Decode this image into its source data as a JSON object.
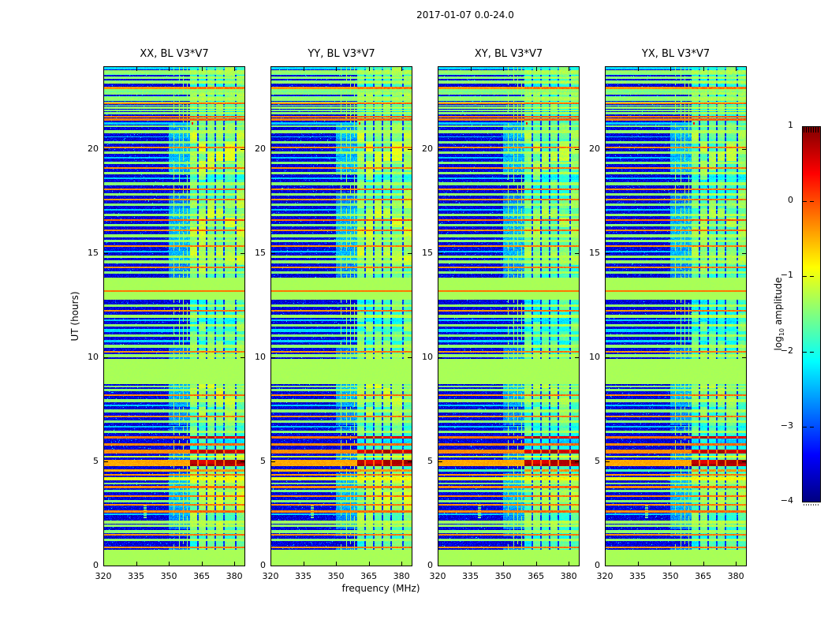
{
  "chart_data": {
    "type": "heatmap",
    "title": "2017-01-07 0.0-24.0",
    "xlabel": "frequency (MHz)",
    "ylabel": "UT (hours)",
    "panels": [
      {
        "title": "XX, BL V3*V7",
        "pol": "parallel"
      },
      {
        "title": "YY, BL V3*V7",
        "pol": "parallel"
      },
      {
        "title": "XY, BL V3*V7",
        "pol": "cross"
      },
      {
        "title": "YX, BL V3*V7",
        "pol": "cross"
      }
    ],
    "x_range_mhz": [
      320,
      385
    ],
    "x_ticks": [
      320,
      335,
      350,
      365,
      380
    ],
    "y_range_hours": [
      0,
      24
    ],
    "y_ticks": [
      0,
      5,
      10,
      15,
      20
    ],
    "colorbar": {
      "label_pre": "log",
      "label_sub": "10",
      "label_post": " amplitude",
      "ticks": [
        1,
        0,
        -1,
        -2,
        -3,
        -4
      ],
      "vmin": -4,
      "vmax": 1,
      "colormap": "jet"
    },
    "features": {
      "noise_floor": -3.75,
      "solid_green_bands": [
        [
          0.0,
          0.78
        ],
        [
          8.75,
          9.95
        ],
        [
          12.8,
          13.85
        ]
      ],
      "solid_band_value": -1.3,
      "broadband_rfi": {
        "f0": 359.7,
        "f1": 385,
        "gaps_mhz": [
          363.3,
          367.3,
          371.3,
          375.2,
          380.6
        ]
      },
      "narrow_vlines_mhz": [
        352.4,
        354.8,
        356.8,
        358.6
      ],
      "orange_vline": {
        "f": 356.8,
        "ut0": 2.5,
        "ut1": 3.1
      },
      "blob": {
        "f": 339,
        "ut0": 2.3,
        "ut1": 3.0
      },
      "cyan_partial_line": {
        "ut": 21.25,
        "fmax": 362,
        "dot_f": 360.8
      },
      "dense_top_ut": 21.85,
      "stripes": [
        [
          0.9,
          0.06,
          -0.35
        ],
        [
          1.25,
          0.1,
          -1.45
        ],
        [
          1.5,
          0.06,
          -0.35
        ],
        [
          1.65,
          0.12,
          -1.45
        ],
        [
          1.95,
          0.1,
          -1.4
        ],
        [
          2.12,
          0.14,
          -1.35
        ],
        [
          2.48,
          0.05,
          -2.4
        ],
        [
          2.62,
          0.06,
          -0.3
        ],
        [
          2.95,
          0.05,
          -0.35
        ],
        [
          3.1,
          0.1,
          -1.45
        ],
        [
          3.35,
          0.06,
          -0.3
        ],
        [
          3.6,
          0.1,
          -1.5
        ],
        [
          3.78,
          0.1,
          -0.3
        ],
        [
          3.95,
          0.06,
          -1.45
        ],
        [
          4.18,
          0.12,
          -1.0
        ],
        [
          4.38,
          0.06,
          -0.35
        ],
        [
          4.6,
          0.08,
          -0.5,
          2
        ],
        [
          4.95,
          0.26,
          -0.45,
          1
        ],
        [
          5.25,
          0.06,
          -1.1
        ],
        [
          5.5,
          0.2,
          -0.3,
          1
        ],
        [
          5.85,
          0.1,
          -0.3
        ],
        [
          6.17,
          0.08,
          -0.2,
          1
        ],
        [
          6.45,
          0.08,
          -1.45
        ],
        [
          6.7,
          0.05,
          -2.4
        ],
        [
          6.95,
          0.1,
          -1.45
        ],
        [
          7.2,
          0.06,
          -0.35
        ],
        [
          7.45,
          0.1,
          -1.45
        ],
        [
          7.7,
          0.05,
          -2.4
        ],
        [
          7.95,
          0.12,
          -1.4
        ],
        [
          8.2,
          0.06,
          -0.3
        ],
        [
          8.45,
          0.1,
          -1.45
        ],
        [
          8.62,
          0.08,
          -1.45
        ],
        [
          10.1,
          0.1,
          -1.4
        ],
        [
          10.3,
          0.06,
          -0.35
        ],
        [
          10.55,
          0.12,
          -1.4
        ],
        [
          10.8,
          0.08,
          -2.35
        ],
        [
          11.05,
          0.1,
          -1.45
        ],
        [
          11.3,
          0.14,
          -2.3
        ],
        [
          11.55,
          0.1,
          -1.4
        ],
        [
          11.8,
          0.05,
          -2.4
        ],
        [
          12.0,
          0.12,
          -1.35
        ],
        [
          12.25,
          0.06,
          -0.35
        ],
        [
          12.5,
          0.1,
          -1.4
        ],
        [
          13.2,
          0.05,
          -0.2
        ],
        [
          14.1,
          0.1,
          -1.45
        ],
        [
          14.35,
          0.06,
          -0.35
        ],
        [
          14.6,
          0.12,
          -1.4
        ],
        [
          14.85,
          0.1,
          -1.35
        ],
        [
          15.1,
          0.05,
          -2.4
        ],
        [
          15.35,
          0.06,
          -0.35
        ],
        [
          15.6,
          0.1,
          -1.45
        ],
        [
          15.85,
          0.1,
          -1.4
        ],
        [
          16.1,
          0.06,
          -0.3
        ],
        [
          16.35,
          0.1,
          -1.45
        ],
        [
          16.6,
          0.06,
          -0.15
        ],
        [
          16.85,
          0.12,
          -1.4
        ],
        [
          17.1,
          0.05,
          -2.4
        ],
        [
          17.35,
          0.1,
          -1.45
        ],
        [
          17.6,
          0.06,
          -0.35
        ],
        [
          17.85,
          0.1,
          -1.4
        ],
        [
          18.1,
          0.06,
          -0.3
        ],
        [
          18.35,
          0.12,
          -1.45
        ],
        [
          18.6,
          0.05,
          -2.4
        ],
        [
          18.85,
          0.1,
          -1.4
        ],
        [
          19.1,
          0.06,
          -0.35
        ],
        [
          19.35,
          0.1,
          -1.45
        ],
        [
          19.6,
          0.05,
          -2.4
        ],
        [
          19.85,
          0.1,
          -1.4
        ],
        [
          20.1,
          0.06,
          -0.35
        ],
        [
          20.35,
          0.1,
          -1.45
        ],
        [
          20.6,
          0.05,
          -2.4
        ],
        [
          20.85,
          0.12,
          -1.4
        ],
        [
          21.1,
          0.06,
          -1.45
        ],
        [
          21.44,
          0.07,
          -0.25
        ],
        [
          21.56,
          0.07,
          -0.25
        ],
        [
          21.75,
          0.1,
          -1.45
        ],
        [
          22.0,
          0.1,
          -1.4
        ],
        [
          22.2,
          0.06,
          -0.3
        ],
        [
          22.45,
          0.12,
          -1.4
        ],
        [
          22.7,
          0.08,
          -1.45
        ],
        [
          22.95,
          0.06,
          -0.35
        ],
        [
          23.2,
          0.1,
          -1.4
        ],
        [
          23.45,
          0.08,
          -1.45
        ],
        [
          23.7,
          0.1,
          -1.4
        ],
        [
          23.9,
          0.08,
          -2.3
        ]
      ]
    }
  }
}
